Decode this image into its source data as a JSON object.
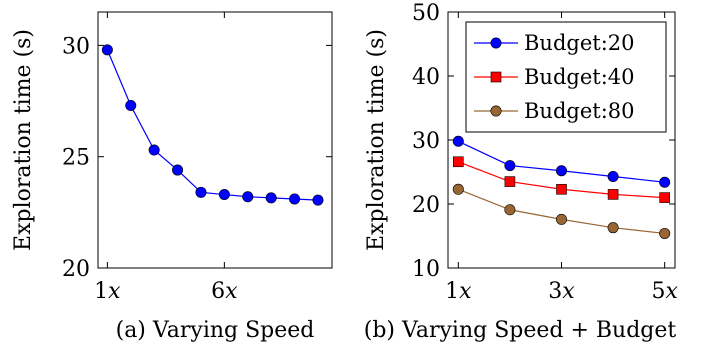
{
  "chart_data": [
    {
      "type": "line",
      "caption": "(a) Varying Speed",
      "ylabel": "Exploration time (s)",
      "xlabel": "",
      "x": [
        1,
        2,
        3,
        4,
        5,
        6,
        7,
        8,
        9,
        10
      ],
      "x_ticks": [
        {
          "value": 1,
          "label": "1x"
        },
        {
          "value": 6,
          "label": "6x"
        }
      ],
      "y_ticks": [
        20,
        25,
        30
      ],
      "ylim": [
        20,
        31.5
      ],
      "xlim": [
        0.6,
        10.6
      ],
      "grid": false,
      "series": [
        {
          "name": "",
          "color": "#0000ff",
          "marker": "circle",
          "values": [
            29.8,
            27.3,
            25.3,
            24.4,
            23.4,
            23.3,
            23.2,
            23.15,
            23.1,
            23.05
          ]
        }
      ]
    },
    {
      "type": "line",
      "caption": "(b) Varying Speed + Budget",
      "ylabel": "Exploration time (s)",
      "xlabel": "",
      "x": [
        1,
        2,
        3,
        4,
        5
      ],
      "x_ticks": [
        {
          "value": 1,
          "label": "1x"
        },
        {
          "value": 3,
          "label": "3x"
        },
        {
          "value": 5,
          "label": "5x"
        }
      ],
      "y_ticks": [
        10,
        20,
        30,
        40,
        50
      ],
      "ylim": [
        10,
        50
      ],
      "xlim": [
        0.8,
        5.2
      ],
      "grid": false,
      "legend_position": "top-right",
      "series": [
        {
          "name": "Budget:20",
          "color": "#0000ff",
          "marker": "circle",
          "values": [
            29.8,
            26.0,
            25.2,
            24.3,
            23.4
          ]
        },
        {
          "name": "Budget:40",
          "color": "#ff0000",
          "marker": "square",
          "values": [
            26.6,
            23.5,
            22.3,
            21.5,
            21.0
          ]
        },
        {
          "name": "Budget:80",
          "color": "#996633",
          "marker": "circle",
          "values": [
            22.3,
            19.1,
            17.6,
            16.3,
            15.4
          ]
        }
      ]
    }
  ]
}
